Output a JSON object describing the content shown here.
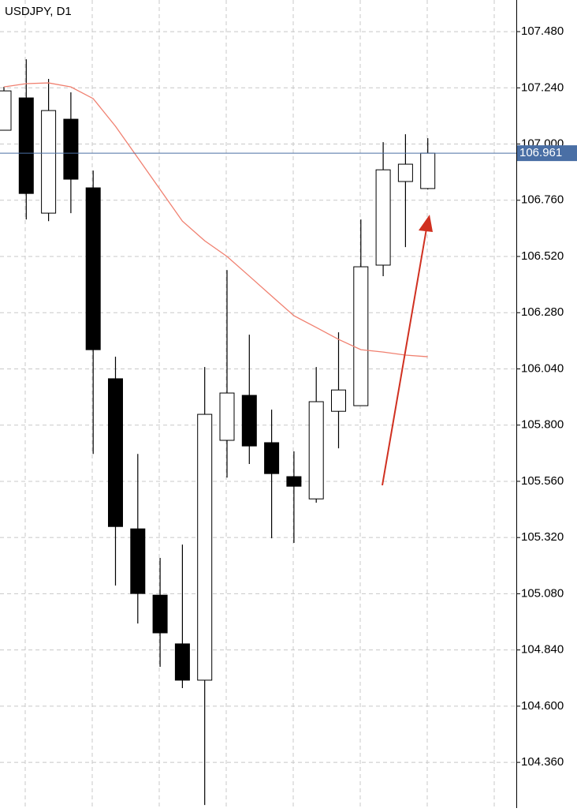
{
  "chart_data": {
    "type": "candlestick",
    "title": "USDJPY, D1",
    "categories": [
      null,
      null,
      null,
      null,
      null,
      null,
      null,
      null,
      null,
      null,
      null,
      null,
      null,
      null,
      null,
      null,
      null,
      null,
      null,
      null
    ],
    "open": [
      107.059,
      107.197,
      106.705,
      107.106,
      106.813,
      105.998,
      105.357,
      105.074,
      104.866,
      104.711,
      105.735,
      105.927,
      105.725,
      105.58,
      105.485,
      105.859,
      105.883,
      106.483,
      106.84,
      106.81
    ],
    "high": [
      107.244,
      107.362,
      107.278,
      107.221,
      106.887,
      106.092,
      105.677,
      105.233,
      105.29,
      106.048,
      106.462,
      106.186,
      105.866,
      105.688,
      106.048,
      106.196,
      106.678,
      107.008,
      107.042,
      107.025
    ],
    "low": [
      107.059,
      106.678,
      106.671,
      106.705,
      105.677,
      105.115,
      104.953,
      104.768,
      104.677,
      104.178,
      105.576,
      105.634,
      105.317,
      105.297,
      105.469,
      105.701,
      105.883,
      106.436,
      106.56,
      106.806
    ],
    "close": [
      107.227,
      106.789,
      107.143,
      106.85,
      106.122,
      105.367,
      105.081,
      104.913,
      104.711,
      105.846,
      105.937,
      105.711,
      105.593,
      105.539,
      105.9,
      105.95,
      106.476,
      106.89,
      106.914,
      106.961
    ],
    "up_color": "#ffffff",
    "down_color": "#000000",
    "ma": {
      "color": "#f08070",
      "values": [
        107.244,
        107.258,
        107.261,
        107.244,
        107.194,
        107.076,
        106.941,
        106.806,
        106.671,
        106.587,
        106.52,
        106.436,
        106.351,
        106.267,
        106.217,
        106.166,
        106.122,
        106.112,
        106.099,
        106.092
      ]
    },
    "last_price": 106.961,
    "last_price_color": "#4a6fa5",
    "ylim": [
      104.165,
      107.615
    ],
    "yticks": [
      {
        "value": 107.48,
        "label": "107.480"
      },
      {
        "value": 107.24,
        "label": "107.240"
      },
      {
        "value": 107.0,
        "label": "107.000"
      },
      {
        "value": 106.76,
        "label": "106.760"
      },
      {
        "value": 106.52,
        "label": "106.520"
      },
      {
        "value": 106.28,
        "label": "106.280"
      },
      {
        "value": 106.04,
        "label": "106.040"
      },
      {
        "value": 105.8,
        "label": "105.800"
      },
      {
        "value": 105.56,
        "label": "105.560"
      },
      {
        "value": 105.32,
        "label": "105.320"
      },
      {
        "value": 105.08,
        "label": "105.080"
      },
      {
        "value": 104.84,
        "label": "104.840"
      },
      {
        "value": 104.6,
        "label": "104.600"
      },
      {
        "value": 104.36,
        "label": "104.360"
      }
    ],
    "grid": true
  }
}
